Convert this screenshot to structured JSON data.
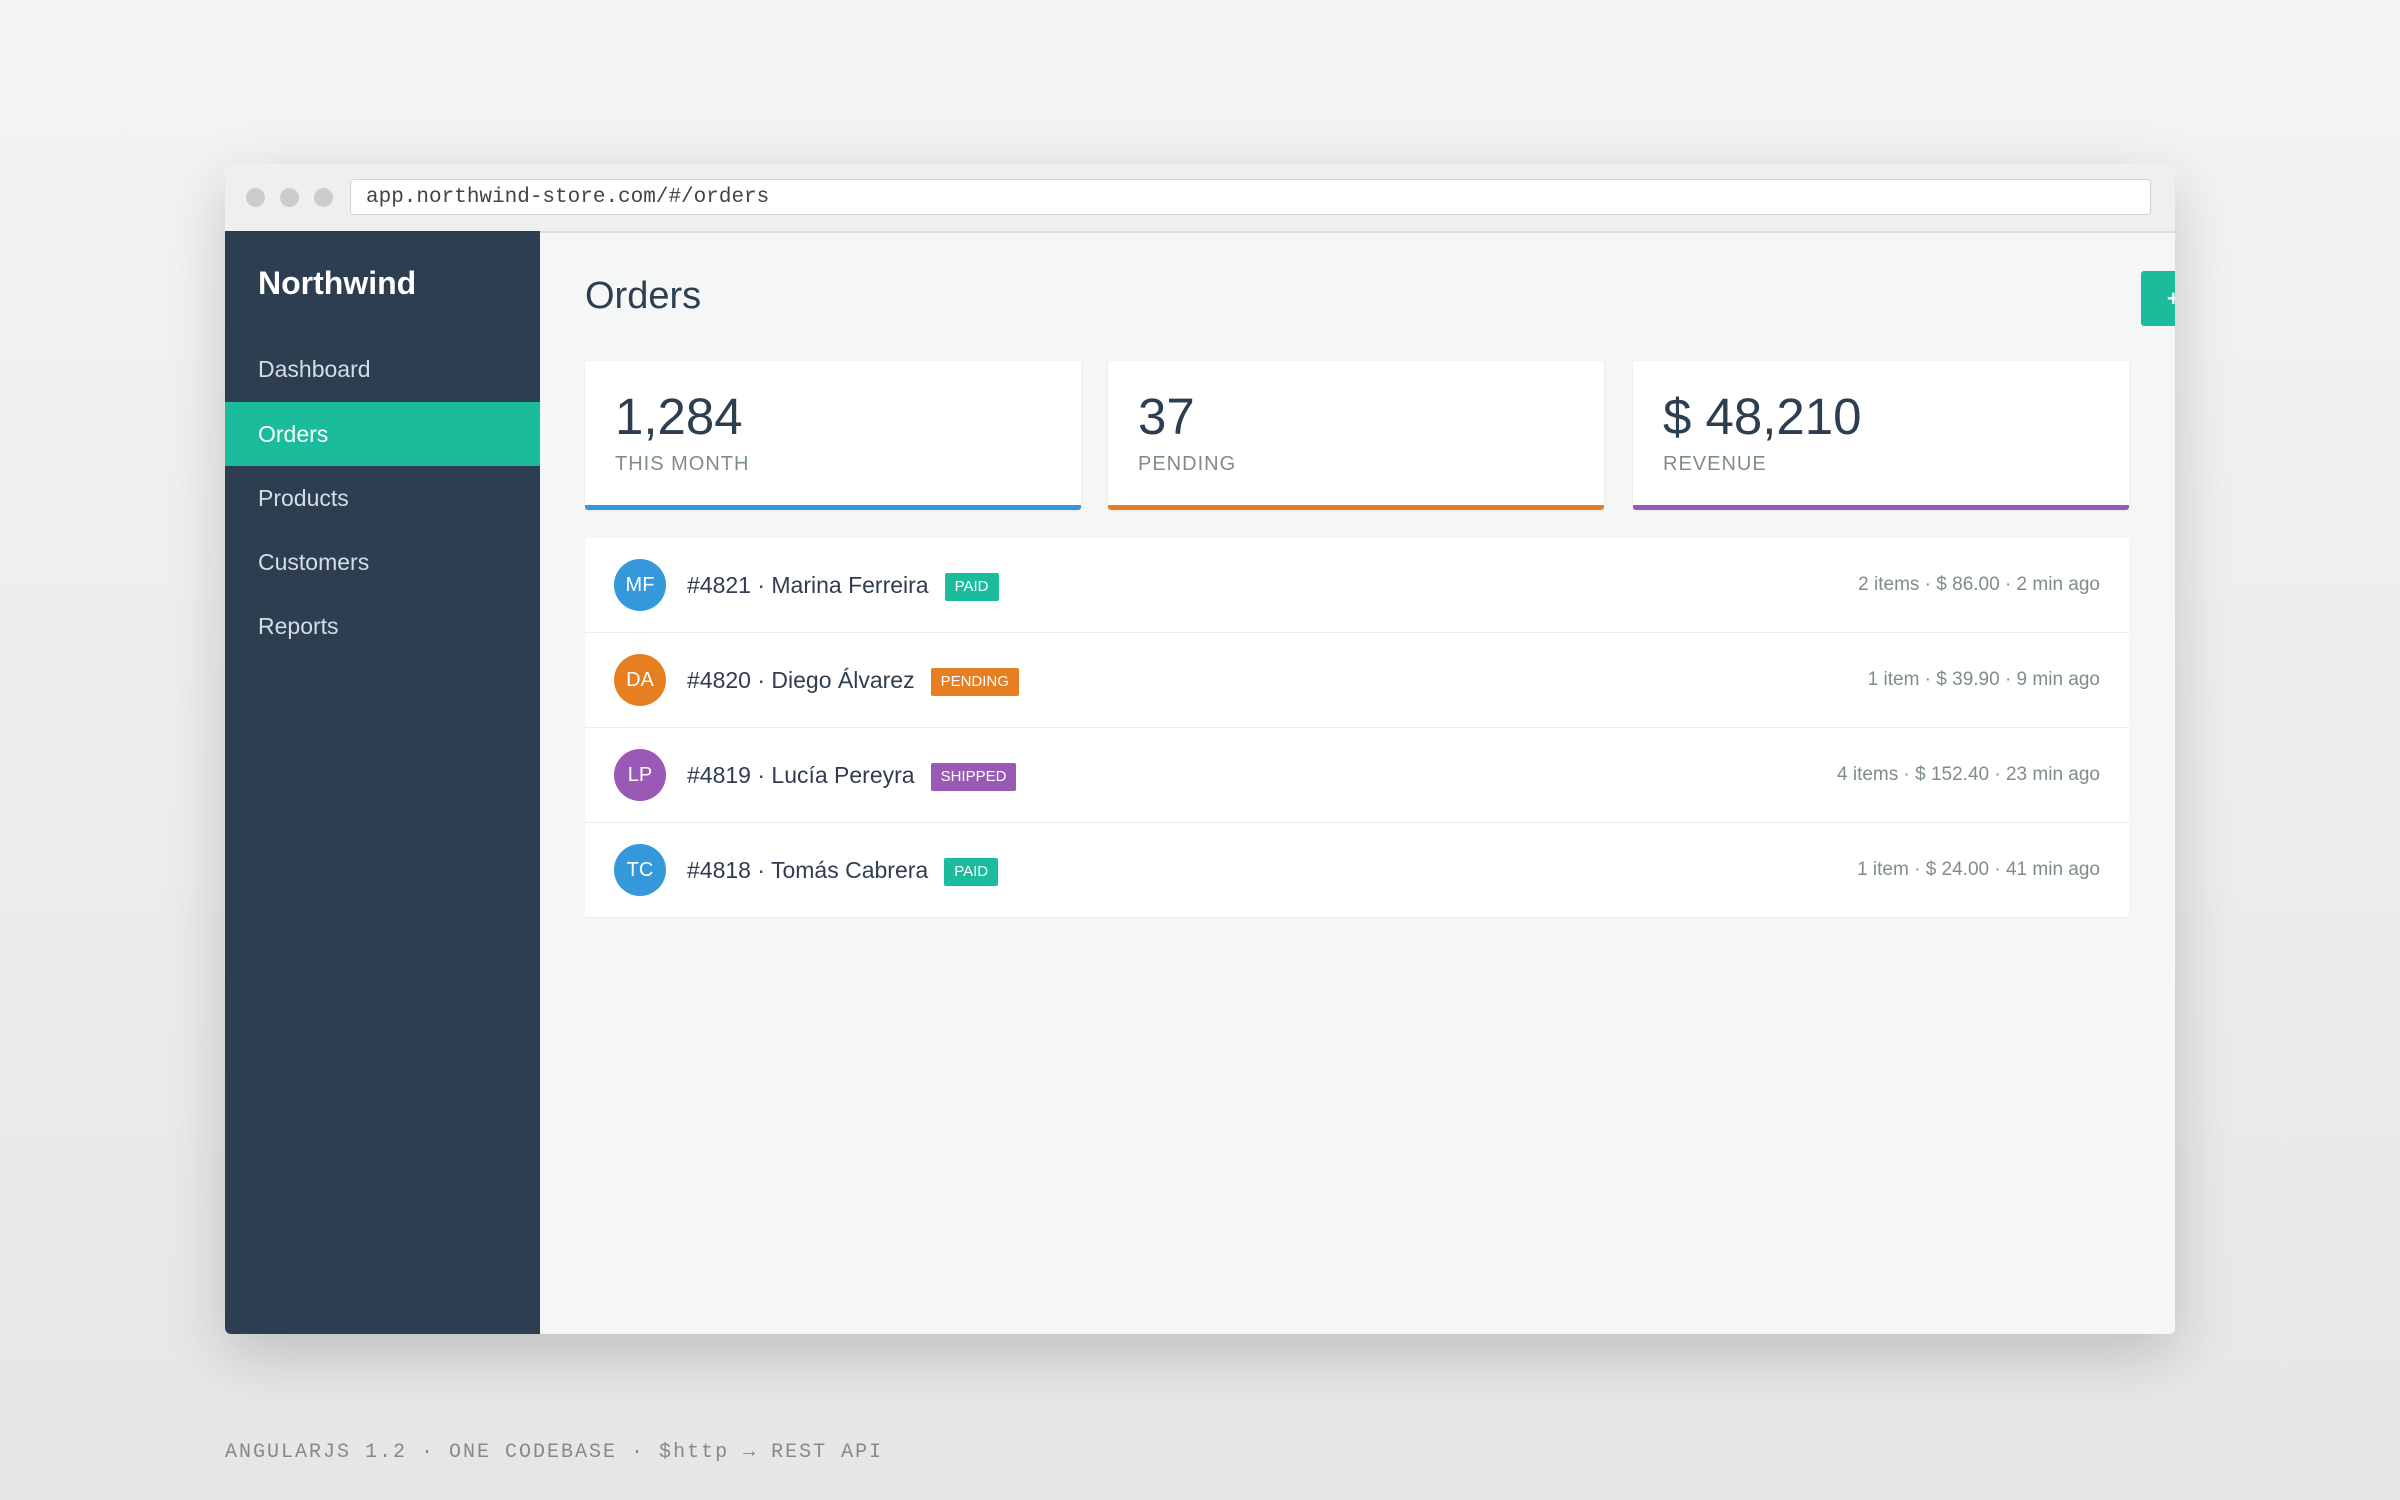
{
  "browser": {
    "url": "app.northwind-store.com/#/orders"
  },
  "sidebar": {
    "brand": "Northwind",
    "nav": [
      "Dashboard",
      "Orders",
      "Products",
      "Customers",
      "Reports"
    ]
  },
  "header": {
    "title": "Orders",
    "button": "+ NEW ORDER"
  },
  "stats": [
    {
      "value": "1,284",
      "label": "THIS MONTH"
    },
    {
      "value": "37",
      "label": "PENDING"
    },
    {
      "value": "$ 48,210",
      "label": "REVENUE"
    }
  ],
  "orders": [
    {
      "initials": "MF",
      "title": "#4821 · Marina Ferreira",
      "status": "PAID",
      "meta": "2 items · $ 86.00 · 2 min ago"
    },
    {
      "initials": "DA",
      "title": "#4820 · Diego Álvarez",
      "status": "PENDING",
      "meta": "1 item · $ 39.90 · 9 min ago"
    },
    {
      "initials": "LP",
      "title": "#4819 · Lucía Pereyra",
      "status": "SHIPPED",
      "meta": "4 items · $ 152.40 · 23 min ago"
    },
    {
      "initials": "TC",
      "title": "#4818 · Tomás Cabrera",
      "status": "PAID",
      "meta": "1 item · $ 24.00 · 41 min ago"
    }
  ],
  "footer": "ANGULARJS 1.2 · ONE CODEBASE · $http → REST API"
}
